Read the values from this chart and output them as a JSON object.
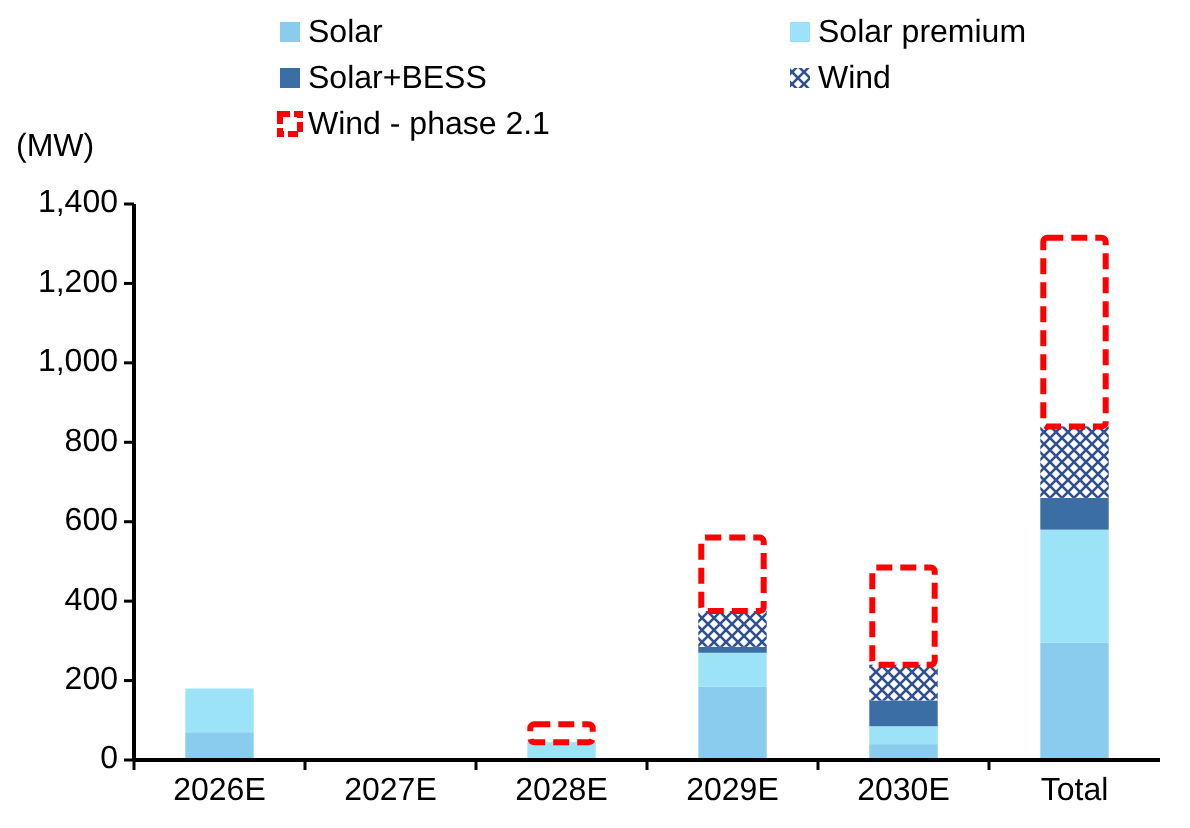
{
  "chart_data": {
    "type": "bar",
    "stacked": true,
    "ylabel": "(MW)",
    "categories": [
      "2026E",
      "2027E",
      "2028E",
      "2029E",
      "2030E",
      "Total"
    ],
    "series": [
      {
        "name": "Solar",
        "color": "#8accee",
        "values": [
          70,
          0,
          0,
          185,
          40,
          295
        ]
      },
      {
        "name": "Solar premium",
        "color": "#9de3f7",
        "values": [
          110,
          0,
          45,
          85,
          45,
          285
        ]
      },
      {
        "name": "Solar+BESS",
        "color": "#3a6ea5",
        "values": [
          0,
          0,
          0,
          15,
          65,
          80
        ]
      },
      {
        "name": "Wind",
        "color": "#2f4f8f",
        "values": [
          0,
          0,
          0,
          90,
          90,
          180
        ]
      },
      {
        "name": "Wind - phase 2.1",
        "color": "#ff0000",
        "line_style": "dashed",
        "values": [
          0,
          0,
          45,
          185,
          245,
          475
        ]
      }
    ],
    "ylim": [
      0,
      1400
    ],
    "yticks": [
      {
        "value": 0,
        "label": "0"
      },
      {
        "value": 200,
        "label": "200"
      },
      {
        "value": 400,
        "label": "400"
      },
      {
        "value": 600,
        "label": "600"
      },
      {
        "value": 800,
        "label": "800"
      },
      {
        "value": 1000,
        "label": "1,000"
      },
      {
        "value": 1200,
        "label": "1,200"
      },
      {
        "value": 1400,
        "label": "1,400"
      }
    ],
    "legend": "top",
    "grid": false
  }
}
